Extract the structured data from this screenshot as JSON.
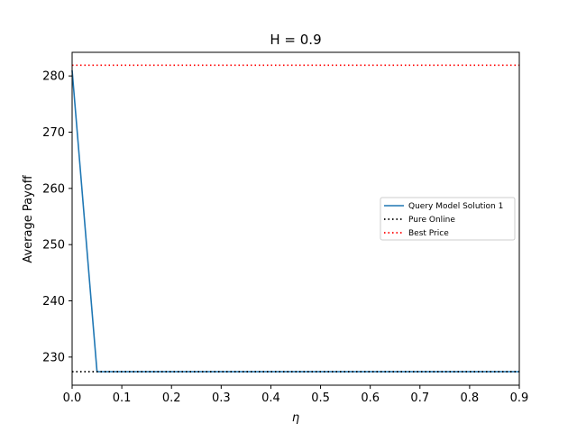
{
  "chart_data": {
    "type": "line",
    "title": "H = 0.9",
    "xlabel": "η",
    "ylabel": "Average Payoff",
    "xlim": [
      0.0,
      0.9
    ],
    "ylim": [
      225,
      284.2
    ],
    "xticks": [
      "0.0",
      "0.1",
      "0.2",
      "0.3",
      "0.4",
      "0.5",
      "0.6",
      "0.7",
      "0.8",
      "0.9"
    ],
    "yticks": [
      "230",
      "240",
      "250",
      "260",
      "270",
      "280"
    ],
    "grid": false,
    "legend_position": "center-right",
    "series": [
      {
        "name": "Query Model Solution 1",
        "style": "solid",
        "color": "#1f77b4",
        "x": [
          0.0,
          0.05,
          0.1,
          0.15,
          0.2,
          0.25,
          0.3,
          0.35,
          0.4,
          0.45,
          0.5,
          0.55,
          0.6,
          0.65,
          0.7,
          0.75,
          0.8,
          0.85,
          0.9
        ],
        "y": [
          281.0,
          227.4,
          227.4,
          227.4,
          227.4,
          227.4,
          227.4,
          227.4,
          227.4,
          227.4,
          227.4,
          227.4,
          227.4,
          227.4,
          227.4,
          227.4,
          227.4,
          227.4,
          227.4
        ]
      },
      {
        "name": "Pure Online",
        "style": "dotted",
        "color": "#000000",
        "x": [
          0.0,
          0.9
        ],
        "y": [
          227.4,
          227.4
        ]
      },
      {
        "name": "Best Price",
        "style": "dotted",
        "color": "#ff0000",
        "x": [
          0.0,
          0.9
        ],
        "y": [
          281.9,
          281.9
        ]
      }
    ]
  }
}
